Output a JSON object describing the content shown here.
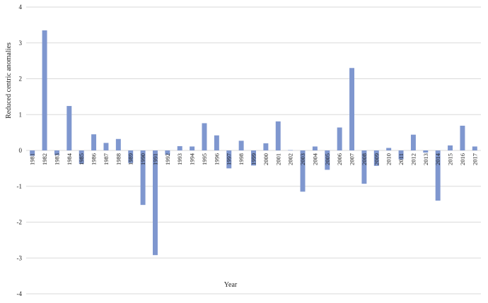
{
  "chart_data": {
    "type": "bar",
    "title": "",
    "xlabel": "Year",
    "ylabel": "Reduced centric anomalies",
    "ylim": [
      -4,
      4
    ],
    "yticks": [
      "-4",
      "-3",
      "-2",
      "-1",
      "0",
      "1",
      "2",
      "3",
      "4"
    ],
    "grid": true,
    "bar_color": "#7f97cf",
    "grid_color": "#dadada",
    "categories": [
      "1981",
      "1982",
      "1983",
      "1984",
      "1985",
      "1986",
      "1987",
      "1988",
      "1989",
      "1990",
      "1991",
      "1992",
      "1993",
      "1994",
      "1995",
      "1996",
      "1997",
      "1998",
      "1999",
      "2000",
      "2001",
      "2002",
      "2003",
      "2004",
      "2005",
      "2006",
      "2007",
      "2008",
      "2009",
      "2010",
      "2011",
      "2012",
      "2013",
      "2014",
      "2015",
      "2016",
      "2017"
    ],
    "values": [
      -0.15,
      3.35,
      -0.13,
      1.24,
      -0.37,
      0.45,
      0.21,
      0.32,
      -0.35,
      -1.52,
      -2.92,
      -0.12,
      0.12,
      0.11,
      0.76,
      0.42,
      -0.5,
      0.27,
      -0.42,
      0.2,
      0.81,
      0.01,
      -1.15,
      0.11,
      -0.54,
      0.64,
      2.3,
      -0.93,
      -0.43,
      0.07,
      -0.25,
      0.44,
      -0.06,
      -1.4,
      0.14,
      0.69,
      0.11
    ]
  }
}
